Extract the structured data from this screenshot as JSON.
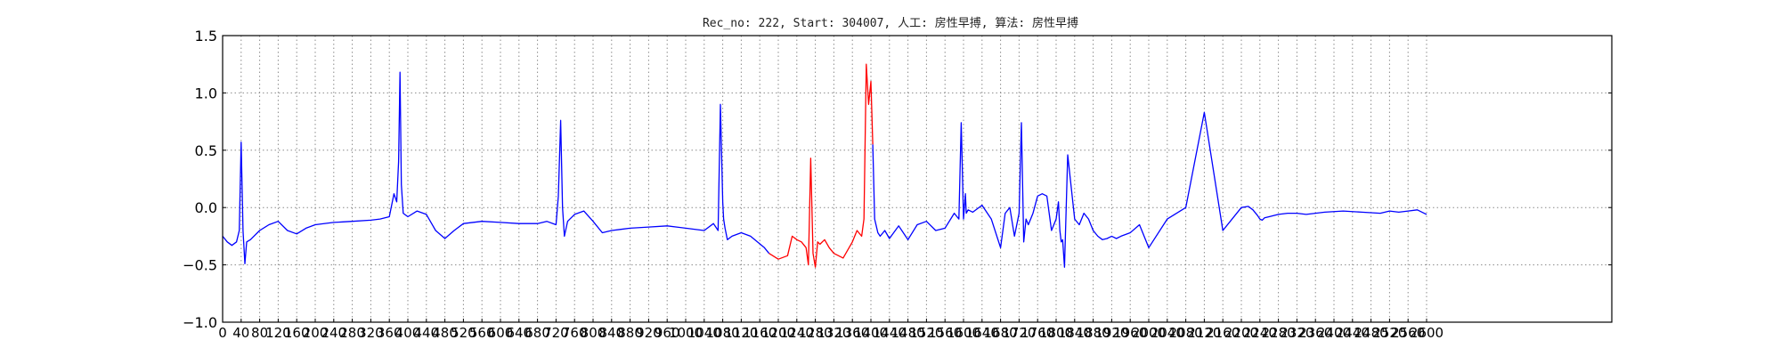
{
  "chart_data": {
    "type": "line",
    "title": "Rec_no: 222, Start: 304007, 人工: 房性早搏, 算法: 房性早搏",
    "xlabel": "",
    "ylabel": "",
    "xlim": [
      0,
      3000
    ],
    "ylim": [
      -1.0,
      1.5
    ],
    "yticks": [
      1.5,
      1.0,
      0.5,
      0.0,
      -0.5,
      -1.0
    ],
    "ytick_labels": [
      "1.5",
      "1.0",
      "0.5",
      "0.0",
      "−0.5",
      "−1.0"
    ],
    "xticks": [
      0,
      40,
      80,
      120,
      160,
      200,
      240,
      280,
      320,
      360,
      400,
      440,
      480,
      520,
      560,
      600,
      640,
      680,
      720,
      760,
      800,
      840,
      880,
      920,
      960,
      1000,
      1040,
      1080,
      1120,
      1160,
      1200,
      1240,
      1280,
      1320,
      1360,
      1400,
      1440,
      1480,
      1520,
      1560,
      1600,
      1640,
      1680,
      1720,
      1760,
      1800,
      1840,
      1880,
      1920,
      1960,
      2000,
      2040,
      2080,
      2120,
      2160,
      2200,
      2240,
      2280,
      2320,
      2360,
      2400,
      2440,
      2480,
      2520,
      2560,
      2600
    ],
    "xtick_labels": [
      "0",
      "40",
      "80",
      "120",
      "160",
      "200",
      "240",
      "280",
      "320",
      "360",
      "400",
      "440",
      "480",
      "520",
      "560",
      "600",
      "640",
      "680",
      "720",
      "760",
      "800",
      "840",
      "880",
      "920",
      "960",
      "1000",
      "1040",
      "1080",
      "1120",
      "1160",
      "1200",
      "1240",
      "1280",
      "1320",
      "1360",
      "1400",
      "1440",
      "1480",
      "1520",
      "1560",
      "1600",
      "1640",
      "1680",
      "1720",
      "1760",
      "1800",
      "1840",
      "1880",
      "1920",
      "1960",
      "2000",
      "2040",
      "2080",
      "2120",
      "2160",
      "2200",
      "2240",
      "2280",
      "2320",
      "2360",
      "2400",
      "2440",
      "2480",
      "2520",
      "2560",
      "2600"
    ],
    "grid": true,
    "legend": "none",
    "series": [
      {
        "color": "#0000ff",
        "x": [
          0,
          10,
          20,
          30,
          36,
          40,
          44,
          48,
          52,
          60,
          80,
          100,
          120,
          140,
          160,
          180,
          200,
          240,
          280,
          320,
          340,
          360,
          370,
          376,
          380,
          383,
          386,
          390,
          400,
          420,
          440,
          460,
          480,
          500,
          520,
          560,
          600,
          640,
          680,
          700,
          720,
          725,
          730,
          734,
          738,
          745,
          760,
          780,
          800,
          820,
          840,
          860,
          880,
          920,
          960,
          1000,
          1040,
          1060,
          1070,
          1075,
          1080,
          1082,
          1085,
          1090,
          1100,
          1120,
          1140,
          1170,
          1180
        ],
        "y": [
          -0.25,
          -0.3,
          -0.33,
          -0.3,
          -0.2,
          0.57,
          -0.2,
          -0.49,
          -0.3,
          -0.28,
          -0.2,
          -0.15,
          -0.12,
          -0.2,
          -0.23,
          -0.18,
          -0.15,
          -0.13,
          -0.12,
          -0.11,
          -0.1,
          -0.08,
          0.12,
          0.05,
          0.4,
          1.18,
          0.2,
          -0.05,
          -0.08,
          -0.03,
          -0.06,
          -0.2,
          -0.27,
          -0.2,
          -0.14,
          -0.12,
          -0.13,
          -0.14,
          -0.14,
          -0.12,
          -0.15,
          0.1,
          0.76,
          0.0,
          -0.25,
          -0.12,
          -0.06,
          -0.03,
          -0.12,
          -0.22,
          -0.2,
          -0.19,
          -0.18,
          -0.17,
          -0.16,
          -0.18,
          -0.2,
          -0.14,
          -0.2,
          0.9,
          0.05,
          -0.1,
          -0.18,
          -0.28,
          -0.25,
          -0.22,
          -0.25,
          -0.35,
          -0.4
        ]
      },
      {
        "color": "#ff0000",
        "x": [
          1180,
          1200,
          1220,
          1230,
          1240,
          1250,
          1260,
          1265,
          1270,
          1275,
          1280,
          1285,
          1290,
          1300,
          1310,
          1320,
          1340,
          1360,
          1370,
          1380,
          1385,
          1390,
          1395,
          1400,
          1404
        ],
        "y": [
          -0.4,
          -0.45,
          -0.42,
          -0.25,
          -0.28,
          -0.3,
          -0.35,
          -0.5,
          0.43,
          -0.4,
          -0.52,
          -0.3,
          -0.32,
          -0.28,
          -0.35,
          -0.4,
          -0.44,
          -0.3,
          -0.2,
          -0.25,
          -0.1,
          1.25,
          0.9,
          1.1,
          0.55
        ]
      },
      {
        "color": "#0000ff",
        "x": [
          1404,
          1408,
          1415,
          1420,
          1430,
          1440,
          1460,
          1480,
          1500,
          1520,
          1540,
          1560,
          1580,
          1590,
          1595,
          1600,
          1604,
          1606,
          1610,
          1620,
          1640,
          1660,
          1680,
          1690,
          1700,
          1710,
          1720,
          1725,
          1730,
          1735,
          1740,
          1750,
          1760,
          1770,
          1780,
          1790,
          1800,
          1805,
          1808,
          1811,
          1814,
          1818,
          1825,
          1840,
          1850,
          1860,
          1870,
          1880,
          1890,
          1900,
          1910,
          1915,
          1920,
          1925,
          1930,
          1940,
          1960,
          1980,
          2000,
          2040,
          2080,
          2120,
          2160,
          2200,
          2215,
          2225,
          2235,
          2240,
          2245,
          2250,
          2260,
          2280,
          2300,
          2320,
          2340,
          2380,
          2420,
          2460,
          2500,
          2520,
          2540,
          2560,
          2580,
          2600
        ],
        "y": [
          0.55,
          -0.1,
          -0.22,
          -0.25,
          -0.2,
          -0.27,
          -0.16,
          -0.28,
          -0.15,
          -0.12,
          -0.2,
          -0.18,
          -0.05,
          -0.1,
          0.74,
          -0.1,
          0.12,
          -0.05,
          -0.02,
          -0.04,
          0.02,
          -0.1,
          -0.35,
          -0.05,
          0.0,
          -0.25,
          -0.05,
          0.74,
          -0.3,
          -0.1,
          -0.15,
          -0.05,
          0.1,
          0.12,
          0.1,
          -0.2,
          -0.1,
          0.05,
          -0.2,
          -0.3,
          -0.28,
          -0.52,
          0.46,
          -0.1,
          -0.15,
          -0.05,
          -0.1,
          -0.2,
          -0.25,
          -0.28,
          -0.27,
          -0.26,
          -0.25,
          -0.26,
          -0.27,
          -0.25,
          -0.22,
          -0.15,
          -0.35,
          -0.1,
          0.0,
          0.83,
          -0.2,
          0.0,
          0.01,
          -0.02,
          -0.07,
          -0.1,
          -0.11,
          -0.09,
          -0.08,
          -0.06,
          -0.05,
          -0.05,
          -0.06,
          -0.04,
          -0.03,
          -0.04,
          -0.05,
          -0.03,
          -0.04,
          -0.03,
          -0.02,
          -0.06
        ]
      }
    ]
  }
}
